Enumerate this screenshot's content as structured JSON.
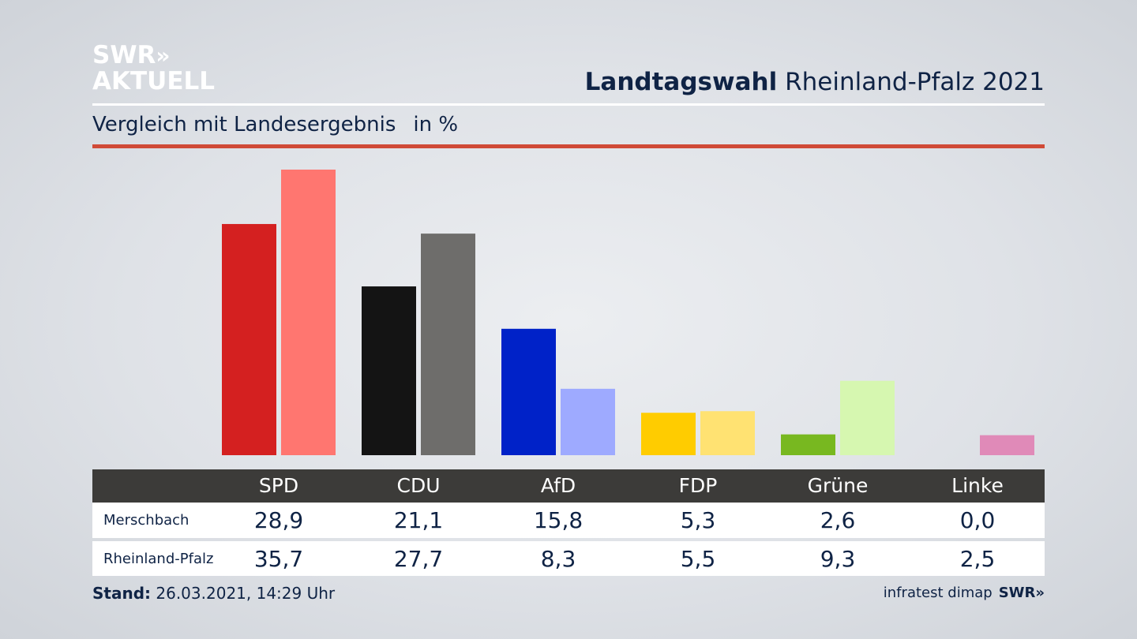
{
  "logo": {
    "line1": "SWR",
    "chevrons": "»",
    "line2": "AKTUELL"
  },
  "header": {
    "title_bold": "Landtagswahl",
    "title_rest": "Rheinland-Pfalz 2021"
  },
  "subtitle": {
    "text": "Vergleich mit Landesergebnis",
    "unit": "in %"
  },
  "footer": {
    "stand_label": "Stand:",
    "stand_value": "26.03.2021, 14:29 Uhr",
    "source": "infratest dimap",
    "source_logo": "SWR»"
  },
  "colors": {
    "Merschbach": [
      "#d42020",
      "#141414",
      "#0022c8",
      "#ffcc00",
      "#78b820",
      "#d88ab4"
    ],
    "Rheinland-Pfalz": [
      "#ff7670",
      "#6e6d6b",
      "#9eaaff",
      "#ffe272",
      "#d6f7b0",
      "#e08ab8"
    ]
  },
  "chart_data": {
    "type": "bar",
    "categories": [
      "SPD",
      "CDU",
      "AfD",
      "FDP",
      "Grüne",
      "Linke"
    ],
    "series": [
      {
        "name": "Merschbach",
        "values": [
          28.9,
          21.1,
          15.8,
          5.3,
          2.6,
          0.0
        ],
        "labels": [
          "28,9",
          "21,1",
          "15,8",
          "5,3",
          "2,6",
          "0,0"
        ]
      },
      {
        "name": "Rheinland-Pfalz",
        "values": [
          35.7,
          27.7,
          8.3,
          5.5,
          9.3,
          2.5
        ],
        "labels": [
          "35,7",
          "27,7",
          "8,3",
          "5,5",
          "9,3",
          "2,5"
        ]
      }
    ],
    "ylim": [
      0,
      35.7
    ],
    "grid": false,
    "legend": "none"
  }
}
